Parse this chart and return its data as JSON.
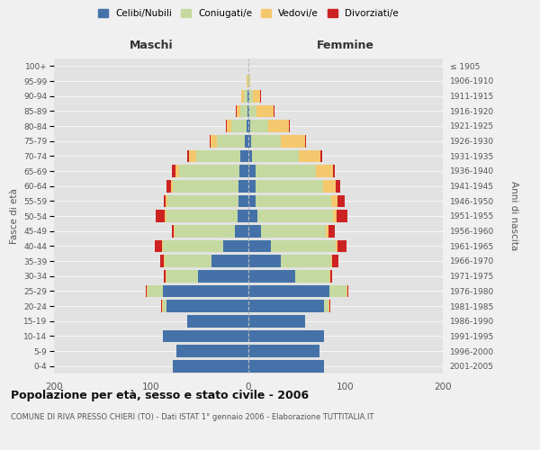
{
  "age_groups": [
    "0-4",
    "5-9",
    "10-14",
    "15-19",
    "20-24",
    "25-29",
    "30-34",
    "35-39",
    "40-44",
    "45-49",
    "50-54",
    "55-59",
    "60-64",
    "65-69",
    "70-74",
    "75-79",
    "80-84",
    "85-89",
    "90-94",
    "95-99",
    "100+"
  ],
  "birth_years": [
    "2001-2005",
    "1996-2000",
    "1991-1995",
    "1986-1990",
    "1981-1985",
    "1976-1980",
    "1971-1975",
    "1966-1970",
    "1961-1965",
    "1956-1960",
    "1951-1955",
    "1946-1950",
    "1941-1945",
    "1936-1940",
    "1931-1935",
    "1926-1930",
    "1921-1925",
    "1916-1920",
    "1911-1915",
    "1906-1910",
    "≤ 1905"
  ],
  "maschi": {
    "celibi": [
      78,
      74,
      88,
      63,
      84,
      88,
      52,
      38,
      26,
      14,
      11,
      10,
      10,
      9,
      8,
      4,
      2,
      1,
      1,
      0,
      0
    ],
    "coniugati": [
      0,
      0,
      0,
      0,
      4,
      16,
      32,
      48,
      62,
      62,
      73,
      73,
      68,
      62,
      46,
      28,
      16,
      7,
      4,
      1,
      0
    ],
    "vedovi": [
      0,
      0,
      0,
      0,
      1,
      1,
      1,
      1,
      1,
      1,
      2,
      2,
      2,
      4,
      7,
      7,
      4,
      4,
      2,
      1,
      0
    ],
    "divorziati": [
      0,
      0,
      0,
      0,
      1,
      1,
      2,
      4,
      7,
      2,
      9,
      2,
      4,
      4,
      2,
      1,
      1,
      1,
      0,
      0,
      0
    ]
  },
  "femmine": {
    "nubili": [
      78,
      73,
      78,
      58,
      78,
      83,
      48,
      33,
      23,
      13,
      9,
      7,
      7,
      7,
      4,
      3,
      2,
      1,
      1,
      0,
      0
    ],
    "coniugate": [
      0,
      0,
      0,
      0,
      4,
      18,
      35,
      52,
      67,
      67,
      78,
      78,
      70,
      62,
      48,
      30,
      18,
      7,
      4,
      1,
      0
    ],
    "vedove": [
      0,
      0,
      0,
      0,
      1,
      1,
      1,
      1,
      2,
      2,
      4,
      7,
      13,
      18,
      22,
      25,
      22,
      18,
      7,
      1,
      0
    ],
    "divorziate": [
      0,
      0,
      0,
      0,
      1,
      1,
      2,
      7,
      9,
      7,
      11,
      7,
      4,
      2,
      2,
      1,
      1,
      1,
      1,
      0,
      0
    ]
  },
  "colors": {
    "celibi": "#4472a8",
    "coniugati": "#c5d9a0",
    "vedovi": "#f5c86e",
    "divorziati": "#cc2222"
  },
  "title": "Popolazione per età, sesso e stato civile - 2006",
  "subtitle": "COMUNE DI RIVA PRESSO CHIERI (TO) - Dati ISTAT 1° gennaio 2006 - Elaborazione TUTTITALIA.IT",
  "label_maschi": "Maschi",
  "label_femmine": "Femmine",
  "label_fascia": "Fasce di età",
  "label_anni": "Anni di nascita",
  "legend_labels": [
    "Celibi/Nubili",
    "Coniugati/e",
    "Vedovi/e",
    "Divorziati/e"
  ],
  "xlim": 200,
  "bg_color": "#f0f0f0",
  "plot_bg": "#e2e2e2"
}
